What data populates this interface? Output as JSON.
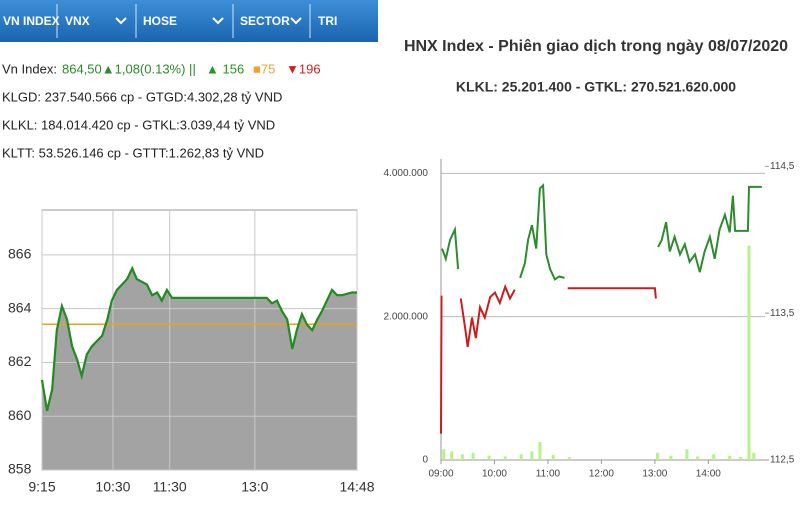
{
  "tabs": [
    "VN INDEX",
    "VNX",
    "HOSE",
    "SECTOR",
    "TRI"
  ],
  "summary": {
    "label": "Vn Index:",
    "index": "864,50▲1,08(0.13%) ||",
    "up": "▲ 156",
    "flat": "■75",
    "down": "▼196"
  },
  "info_lines": [
    "KLGD: 237.540.566 cp - GTGD:4.302,28 tỷ VND",
    "KLKL: 184.014.420 cp - GTKL:3.039,44 tỷ VND",
    "KLTT: 53.526.146 cp - GTTT:1.262,83 tỷ VND"
  ],
  "chart_data": [
    {
      "type": "area",
      "x": [
        9.25,
        9.34,
        9.43,
        9.51,
        9.6,
        9.69,
        9.78,
        9.87,
        9.95,
        10.04,
        10.13,
        10.22,
        10.31,
        10.4,
        10.48,
        10.57,
        10.66,
        10.75,
        10.84,
        10.92,
        11.01,
        11.1,
        11.19,
        11.28,
        11.36,
        11.45,
        11.54,
        13.21,
        13.3,
        13.39,
        13.48,
        13.57,
        13.66,
        13.74,
        13.83,
        13.92,
        14.01,
        14.1,
        14.18,
        14.27,
        14.36,
        14.45,
        14.54,
        14.71,
        14.8
      ],
      "values": [
        861.35,
        860.2,
        861,
        863.2,
        864.1,
        863.6,
        862.6,
        862.1,
        861.5,
        862.3,
        862.6,
        862.8,
        863,
        863.6,
        864.3,
        864.7,
        864.9,
        865.1,
        865.5,
        865.1,
        865,
        864.9,
        864.5,
        864.6,
        864.3,
        864.7,
        864.4,
        864.4,
        864.2,
        864.3,
        863.9,
        863.6,
        862.5,
        863.2,
        863.8,
        863.4,
        863.2,
        863.6,
        863.9,
        864.3,
        864.7,
        864.5,
        864.5,
        864.6,
        864.6
      ],
      "color": "#1e8c1e",
      "fill": "#a3a3a3",
      "reference_line": 863.42,
      "reference_color": "#e8a317",
      "xlim": [
        9.25,
        14.8
      ],
      "xticks": [
        {
          "value": 9.25,
          "label": "9:15"
        },
        {
          "value": 10.5,
          "label": "10:30"
        },
        {
          "value": 11.5,
          "label": "11:30"
        },
        {
          "value": 13,
          "label": "13:0"
        },
        {
          "value": 14.8,
          "label": "14:48"
        }
      ],
      "ylim": [
        858,
        867.67
      ],
      "yticks": [
        858,
        860,
        862,
        864,
        866
      ],
      "grid": true
    },
    {
      "type": "line",
      "title": "HNX Index - Phiên giao dịch trong ngày 08/07/2020",
      "subtitle": "KLKL: 25.201.400 - GTKL: 270.521.620.000",
      "x": [
        9.0,
        9.01,
        9.02,
        9.09,
        9.17,
        9.26,
        9.32,
        9.37,
        9.45,
        9.5,
        9.58,
        9.65,
        9.73,
        9.82,
        9.92,
        10.01,
        10.1,
        10.2,
        10.29,
        10.38,
        10.48,
        10.57,
        10.63,
        10.7,
        10.78,
        10.85,
        10.91,
        10.97,
        11.04,
        11.13,
        11.21,
        11.31,
        11.37,
        11.5,
        12.0,
        13.0,
        13.02,
        13.06,
        13.13,
        13.21,
        13.28,
        13.37,
        13.47,
        13.56,
        13.65,
        13.75,
        13.84,
        13.93,
        14.03,
        14.12,
        14.21,
        14.31,
        14.4,
        14.46,
        14.5,
        14.74,
        14.76,
        15.0
      ],
      "series": [
        {
          "type": "bar",
          "color": "#b8f08c",
          "x": [
            9.05,
            9.2,
            9.4,
            9.6,
            9.9,
            10.2,
            10.5,
            10.7,
            10.85,
            11.1,
            11.4,
            13.05,
            13.3,
            13.6,
            13.8,
            14.1,
            14.4,
            14.6,
            14.76,
            14.85
          ],
          "values": [
            150000,
            120000,
            80000,
            100000,
            60000,
            50000,
            80000,
            120000,
            250000,
            70000,
            40000,
            100000,
            60000,
            150000,
            50000,
            80000,
            60000,
            40000,
            2990000,
            100000
          ]
        },
        {
          "color": "#2e8b2e",
          "axis": "y2",
          "values": [
            null,
            null,
            113.94,
            113.87,
            114.0,
            114.07,
            113.8,
            null,
            null,
            null,
            null,
            null,
            null,
            null,
            null,
            null,
            null,
            null,
            null,
            null,
            113.74,
            113.84,
            114.0,
            114.1,
            113.94,
            114.35,
            114.37,
            113.9,
            113.8,
            113.73,
            113.75,
            113.74,
            null,
            null,
            null,
            null,
            null,
            113.95,
            114.0,
            114.12,
            113.92,
            114.02,
            113.9,
            113.97,
            113.85,
            113.9,
            113.78,
            113.92,
            114.02,
            113.87,
            114.07,
            114.17,
            114.05,
            114.3,
            114.06,
            114.06,
            114.36,
            114.36
          ]
        },
        {
          "color": "#c81e1e",
          "axis": "y2",
          "values": [
            112.68,
            113.62,
            null,
            null,
            null,
            null,
            null,
            113.6,
            113.4,
            113.27,
            113.47,
            113.33,
            113.54,
            113.47,
            113.61,
            113.64,
            113.57,
            113.68,
            113.6,
            113.66,
            null,
            null,
            null,
            null,
            null,
            null,
            null,
            null,
            null,
            null,
            null,
            null,
            113.67,
            113.67,
            113.67,
            113.67,
            113.6,
            null,
            null,
            null,
            null,
            null,
            null,
            null,
            null,
            null,
            null,
            null,
            null,
            null,
            null,
            null,
            null,
            null,
            null,
            null,
            null,
            null
          ]
        }
      ],
      "xlim": [
        9,
        15.06
      ],
      "xticks": [
        {
          "value": 9,
          "label": "09:00"
        },
        {
          "value": 10,
          "label": "10:00"
        },
        {
          "value": 11,
          "label": "11:00"
        },
        {
          "value": 12,
          "label": "12:00"
        },
        {
          "value": 13,
          "label": "13:00"
        },
        {
          "value": 14,
          "label": "14:00"
        }
      ],
      "ylim": [
        0,
        4200000
      ],
      "yticks": [
        0,
        {
          "value": 2000000,
          "label": "2.000.000"
        },
        {
          "value": 4000000,
          "label": "4.000.000"
        }
      ],
      "y2lim": [
        112.5,
        114.55
      ],
      "y2ticks": [
        {
          "value": 112.5,
          "label": "112,5"
        },
        {
          "value": 113.5,
          "label": "113,5"
        },
        {
          "value": 114.5,
          "label": "114,5"
        }
      ],
      "grid": true
    }
  ]
}
